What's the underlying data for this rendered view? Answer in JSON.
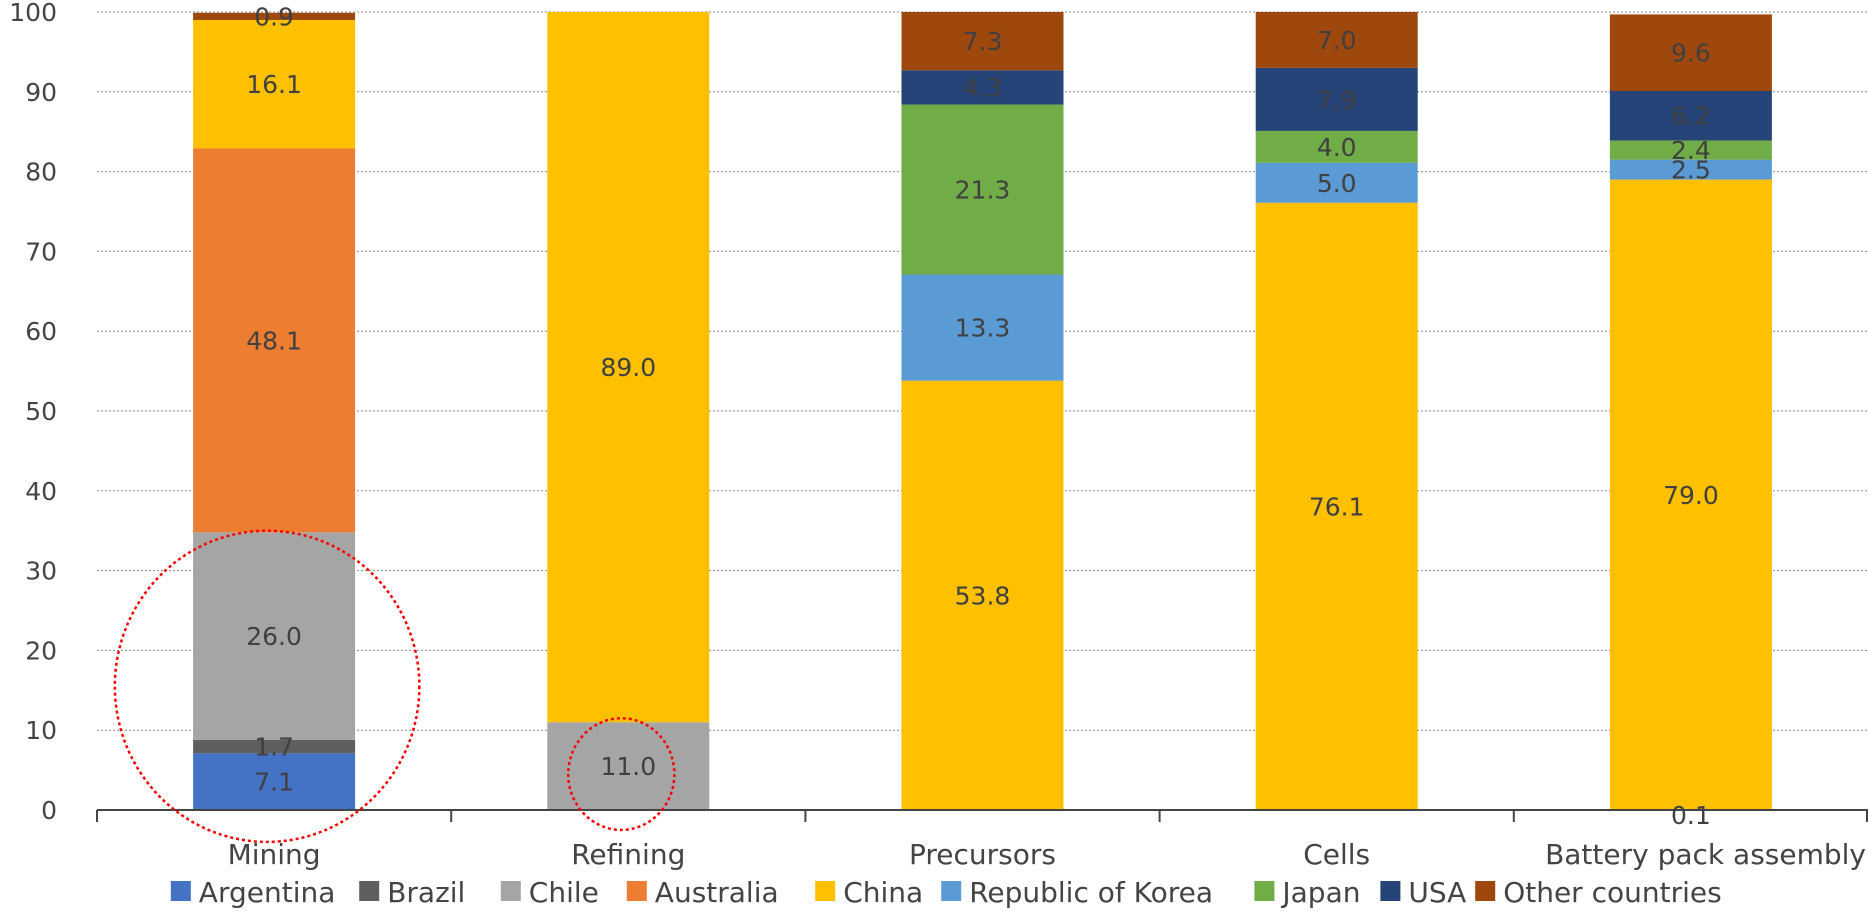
{
  "chart_data": {
    "type": "bar",
    "stacked": true,
    "title": "",
    "xlabel": "",
    "ylabel": "",
    "ylim": [
      0,
      100
    ],
    "yticks": [
      0,
      10,
      20,
      30,
      40,
      50,
      60,
      70,
      80,
      90,
      100
    ],
    "grid": true,
    "legend": "bottom",
    "categories": [
      "Mining",
      "Refining",
      "Precursors",
      "Cells",
      "Battery pack assembly"
    ],
    "series": [
      {
        "name": "Argentina",
        "color": "#4472C4",
        "values": [
          7.1,
          0,
          0,
          0,
          0
        ],
        "labels": [
          "7.1",
          "",
          "",
          "",
          ""
        ]
      },
      {
        "name": "Brazil",
        "color": "#5F5F5F",
        "values": [
          1.7,
          0,
          0,
          0,
          0
        ],
        "labels": [
          "1.7",
          "",
          "",
          "",
          ""
        ]
      },
      {
        "name": "Chile",
        "color": "#A5A5A5",
        "values": [
          26.0,
          11.0,
          0,
          0,
          0
        ],
        "labels": [
          "26.0",
          "11.0",
          "",
          "",
          ""
        ]
      },
      {
        "name": "Australia",
        "color": "#ED7D31",
        "values": [
          48.1,
          0,
          0,
          0,
          0
        ],
        "labels": [
          "48.1",
          "",
          "",
          "",
          ""
        ]
      },
      {
        "name": "China",
        "color": "#FFC000",
        "values": [
          16.1,
          89.0,
          53.8,
          76.1,
          79.0
        ],
        "labels": [
          "16.1",
          "89.0",
          "53.8",
          "76.1",
          "79.0"
        ]
      },
      {
        "name": "Republic of Korea",
        "color": "#5B9BD5",
        "values": [
          0,
          0,
          13.3,
          5.0,
          2.5
        ],
        "labels": [
          "",
          "",
          "13.3",
          "5.0",
          "2.5"
        ]
      },
      {
        "name": "Japan",
        "color": "#70AD47",
        "values": [
          0,
          0,
          21.3,
          4.0,
          2.4
        ],
        "labels": [
          "",
          "",
          "21.3",
          "4.0",
          "2.4"
        ]
      },
      {
        "name": "USA",
        "color": "#264478",
        "values": [
          0,
          0,
          4.3,
          7.9,
          6.2
        ],
        "labels": [
          "",
          "",
          "4.3",
          "7.9",
          "6.2"
        ]
      },
      {
        "name": "Other countries",
        "color": "#9E480E",
        "values": [
          0.9,
          0,
          7.3,
          7.0,
          9.6
        ],
        "labels": [
          "0.9",
          "",
          "7.3",
          "7.0",
          "9.6"
        ]
      }
    ],
    "annotations": [
      {
        "label": "0.1",
        "category": "Battery pack assembly",
        "y": 0
      }
    ],
    "highlights": [
      {
        "shape": "ellipse",
        "color": "#FF0000",
        "category": "Mining",
        "y_range": [
          -4,
          35
        ]
      },
      {
        "shape": "ellipse",
        "color": "#FF0000",
        "category": "Refining",
        "y_range": [
          -2.5,
          11.5
        ]
      }
    ]
  }
}
